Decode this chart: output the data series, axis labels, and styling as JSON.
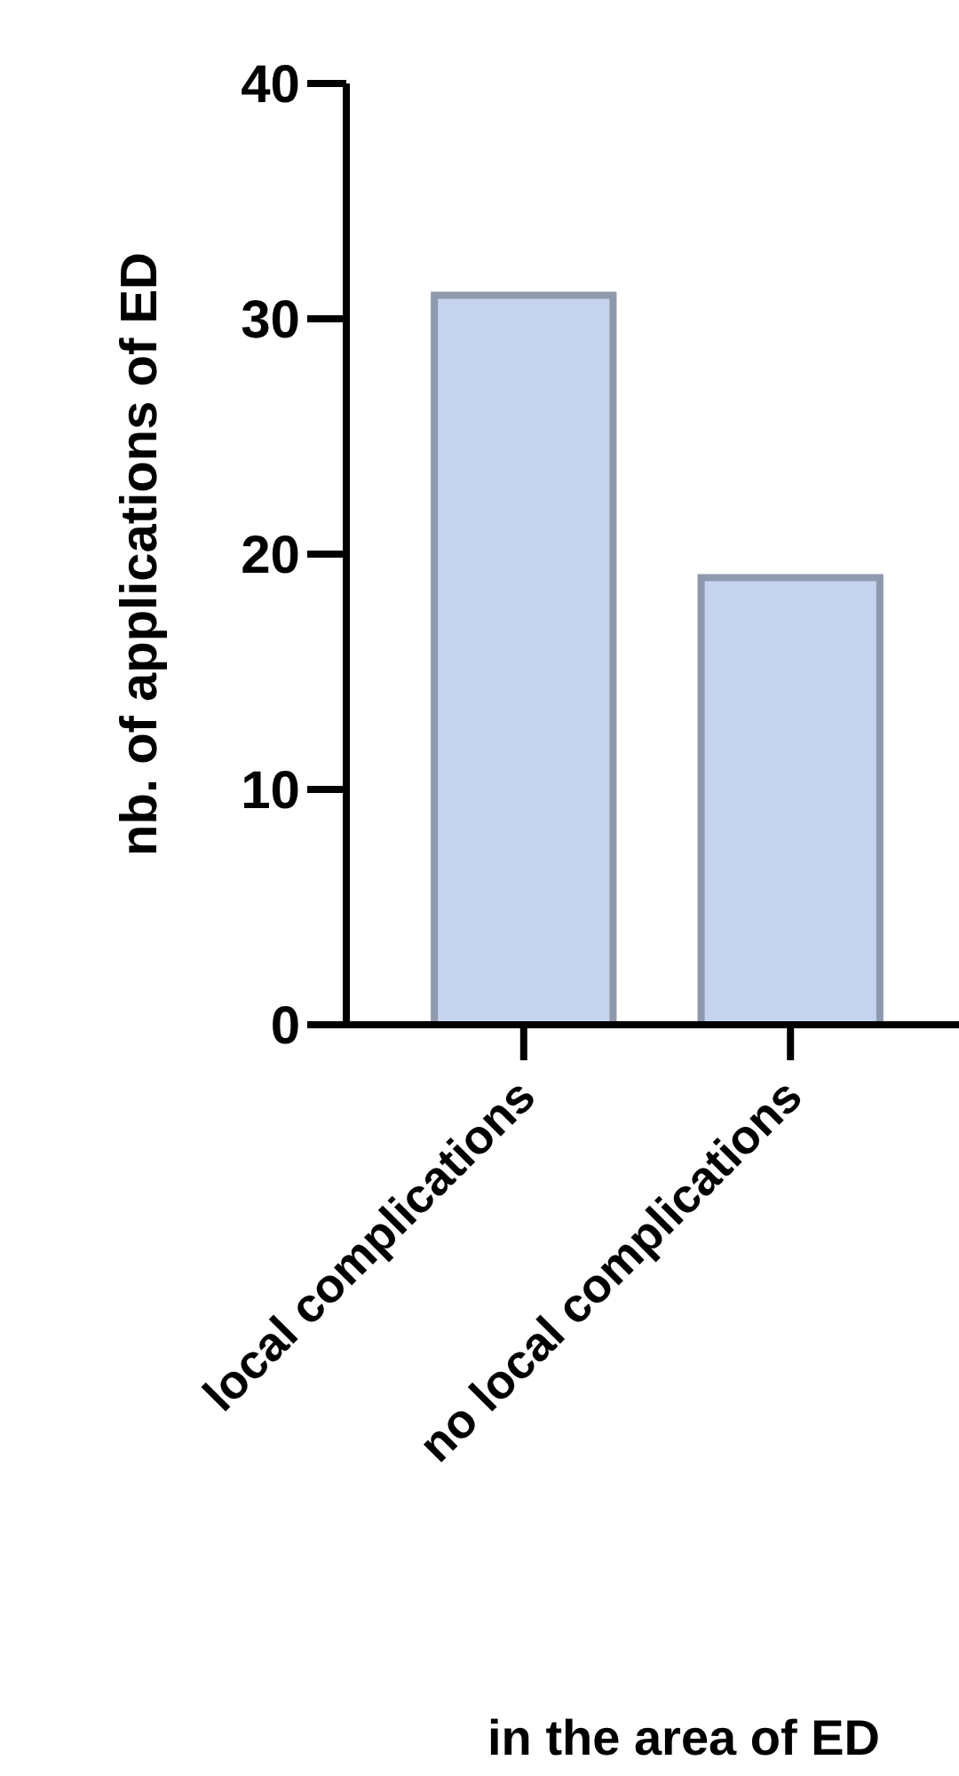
{
  "chart_data": {
    "type": "bar",
    "categories": [
      "local complications",
      "no local complications"
    ],
    "values": [
      31,
      19
    ],
    "color": "#c5d3ee",
    "ylabel": "nb. of applications of ED",
    "xlabel": "in the area of ED",
    "ylim": [
      0,
      40
    ],
    "yticks": [
      0,
      10,
      20,
      30,
      40
    ],
    "grid": false
  }
}
